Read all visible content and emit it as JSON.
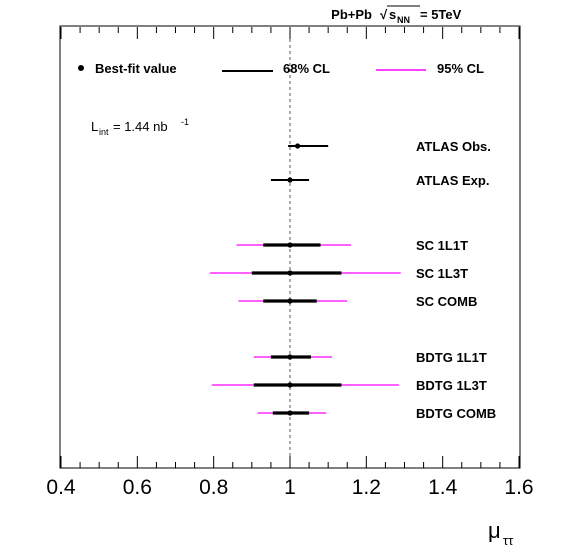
{
  "chart_data": {
    "type": "scatter",
    "title": "Pb+Pb",
    "energy_label": {
      "sqrt_sym": "√",
      "s": "s",
      "sub": "NN",
      "rest": " = 5TeV"
    },
    "xlabel": {
      "main": "μ",
      "sub": "ττ"
    },
    "xlim": [
      0.4,
      1.6
    ],
    "xticks": [
      {
        "value": 0.4,
        "label": "0.4"
      },
      {
        "value": 0.6,
        "label": "0.6"
      },
      {
        "value": 0.8,
        "label": "0.8"
      },
      {
        "value": 1.0,
        "label": "1"
      },
      {
        "value": 1.2,
        "label": "1.2"
      },
      {
        "value": 1.4,
        "label": "1.4"
      },
      {
        "value": 1.6,
        "label": "1.6"
      }
    ],
    "reference_line": 1.0,
    "luminosity": {
      "prefix": "L",
      "sub": "int",
      "value": "= 1.44 nb",
      "sup": "-1"
    },
    "legend": {
      "position": "top",
      "items": [
        {
          "label": "Best-fit value",
          "kind": "marker",
          "color": "#000000"
        },
        {
          "label": "68% CL",
          "kind": "line",
          "color": "#000000"
        },
        {
          "label": "95% CL",
          "kind": "line",
          "color": "#ff00ff"
        }
      ]
    },
    "colors": {
      "cl68": "#000000",
      "cl95": "#ff00ff",
      "ref_line": "#555555"
    },
    "series": [
      {
        "name": "ATLAS Obs.",
        "value": 1.02,
        "cl68": [
          0.995,
          1.1
        ],
        "cl95": null,
        "thick": false
      },
      {
        "name": "ATLAS Exp.",
        "value": 1.0,
        "cl68": [
          0.95,
          1.05
        ],
        "cl95": null,
        "thick": false
      },
      {
        "name": "SC 1L1T",
        "value": 1.0,
        "cl68": [
          0.93,
          1.08
        ],
        "cl95": [
          0.86,
          1.16
        ],
        "thick": true
      },
      {
        "name": "SC 1L3T",
        "value": 1.0,
        "cl68": [
          0.9,
          1.135
        ],
        "cl95": [
          0.79,
          1.29
        ],
        "thick": true
      },
      {
        "name": "SC COMB",
        "value": 1.0,
        "cl68": [
          0.93,
          1.07
        ],
        "cl95": [
          0.865,
          1.15
        ],
        "thick": true
      },
      {
        "name": "BDTG 1L1T",
        "value": 1.0,
        "cl68": [
          0.95,
          1.055
        ],
        "cl95": [
          0.905,
          1.11
        ],
        "thick": true
      },
      {
        "name": "BDTG 1L3T",
        "value": 1.0,
        "cl68": [
          0.905,
          1.135
        ],
        "cl95": [
          0.795,
          1.285
        ],
        "thick": true
      },
      {
        "name": "BDTG COMB",
        "value": 1.0,
        "cl68": [
          0.955,
          1.05
        ],
        "cl95": [
          0.915,
          1.095
        ],
        "thick": true
      }
    ]
  }
}
